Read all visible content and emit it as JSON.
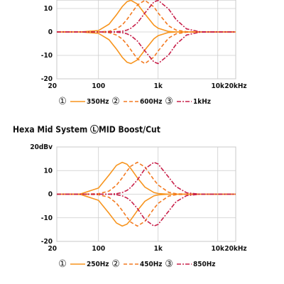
{
  "chart_data": [
    {
      "type": "line",
      "xscale": "log",
      "grid": true,
      "x": [
        20,
        50,
        100,
        150,
        200,
        250,
        300,
        350,
        450,
        600,
        850,
        1000,
        1500,
        2000,
        3000,
        5000,
        10000,
        20000
      ],
      "xlim": [
        20,
        20000
      ],
      "xticks": [
        20,
        100,
        {
          "value": 1000,
          "label": "1k"
        },
        {
          "value": 10000,
          "label": "10k"
        },
        {
          "value": 20000,
          "label": "20kHz"
        }
      ],
      "ylim": [
        -20,
        20
      ],
      "yticks": [
        -20,
        -10,
        0,
        10
      ],
      "series": [
        {
          "name": "350Hz",
          "legend_marker": "①",
          "color": "#f7941d",
          "dash": "none",
          "values": [
            0,
            0,
            0.6,
            3.3,
            7.3,
            10.8,
            12.9,
            13.5,
            11.9,
            7.7,
            2.9,
            1.6,
            0.2,
            0,
            0,
            0,
            0,
            0
          ],
          "values_cut": [
            0,
            0,
            -0.6,
            -3.3,
            -7.3,
            -10.8,
            -12.9,
            -13.5,
            -11.9,
            -7.7,
            -2.9,
            -1.6,
            -0.2,
            0,
            0,
            0,
            0,
            0
          ]
        },
        {
          "name": "600Hz",
          "legend_marker": "②",
          "color": "#f37a20",
          "dash": "5 3",
          "values": [
            0,
            0,
            0,
            0.3,
            1.3,
            3.0,
            5.3,
            7.7,
            11.5,
            13.5,
            10.7,
            8.1,
            2.6,
            0.8,
            0.1,
            0,
            0,
            0
          ],
          "values_cut": [
            0,
            0,
            0,
            -0.3,
            -1.3,
            -3.0,
            -5.3,
            -7.7,
            -11.5,
            -13.5,
            -10.7,
            -8.1,
            -2.6,
            -0.8,
            -0.1,
            0,
            0,
            0
          ]
        },
        {
          "name": "1kHz",
          "legend_marker": "③",
          "color": "#c8204a",
          "dash": "6 2 2 2",
          "values": [
            0,
            0,
            0,
            0,
            0.1,
            0.3,
            0.8,
            1.6,
            3.9,
            8.1,
            12.8,
            13.5,
            9.8,
            5.3,
            1.3,
            0.1,
            0,
            0
          ],
          "values_cut": [
            0,
            0,
            0,
            0,
            -0.1,
            -0.3,
            -0.8,
            -1.6,
            -3.9,
            -8.1,
            -12.8,
            -13.5,
            -9.8,
            -5.3,
            -1.3,
            -0.1,
            0,
            0
          ]
        }
      ]
    },
    {
      "type": "line",
      "xscale": "log",
      "grid": true,
      "title": "Hexa Mid System ⓁMID Boost/Cut",
      "x": [
        20,
        50,
        100,
        150,
        200,
        250,
        300,
        350,
        450,
        600,
        850,
        1000,
        1500,
        2000,
        3000,
        5000,
        10000,
        20000
      ],
      "xlim": [
        20,
        20000
      ],
      "xticks": [
        20,
        100,
        {
          "value": 1000,
          "label": "1k"
        },
        {
          "value": 10000,
          "label": "10k"
        },
        {
          "value": 20000,
          "label": "20kHz"
        }
      ],
      "ylim": [
        -20,
        20
      ],
      "yticks": [
        -20,
        -10,
        0,
        10,
        {
          "value": 20,
          "label": "20dBv"
        }
      ],
      "series": [
        {
          "name": "250Hz",
          "legend_marker": "①",
          "color": "#f7941d",
          "dash": "none",
          "values": [
            0,
            0.1,
            2.6,
            8.1,
            12.2,
            13.5,
            12.7,
            10.8,
            6.9,
            3.0,
            0.7,
            0.3,
            0,
            0,
            0,
            0,
            0,
            0
          ],
          "values_cut": [
            0,
            -0.1,
            -2.6,
            -8.1,
            -12.2,
            -13.5,
            -12.7,
            -10.8,
            -6.9,
            -3.0,
            -0.7,
            -0.3,
            0,
            0,
            0,
            0,
            0,
            0
          ]
        },
        {
          "name": "450Hz",
          "legend_marker": "②",
          "color": "#f37a20",
          "dash": "5 3",
          "values": [
            0,
            0,
            0.2,
            1.3,
            3.8,
            6.9,
            9.8,
            11.9,
            13.5,
            11.5,
            6.1,
            3.9,
            0.8,
            0.2,
            0,
            0,
            0,
            0
          ],
          "values_cut": [
            0,
            0,
            -0.2,
            -1.3,
            -3.8,
            -6.9,
            -9.8,
            -11.9,
            -13.5,
            -11.5,
            -6.1,
            -3.9,
            -0.8,
            -0.2,
            0,
            0,
            0,
            0
          ]
        },
        {
          "name": "850Hz",
          "legend_marker": "③",
          "color": "#c8204a",
          "dash": "6 2 2 2",
          "values": [
            0,
            0,
            0,
            0,
            0.2,
            0.7,
            1.6,
            2.9,
            6.1,
            10.7,
            13.5,
            12.8,
            7.2,
            3.2,
            0.6,
            0,
            0,
            0
          ],
          "values_cut": [
            0,
            0,
            0,
            0,
            -0.2,
            -0.7,
            -1.6,
            -2.9,
            -6.1,
            -10.7,
            -13.5,
            -12.8,
            -7.2,
            -3.2,
            -0.6,
            0,
            0,
            0
          ]
        }
      ]
    }
  ]
}
